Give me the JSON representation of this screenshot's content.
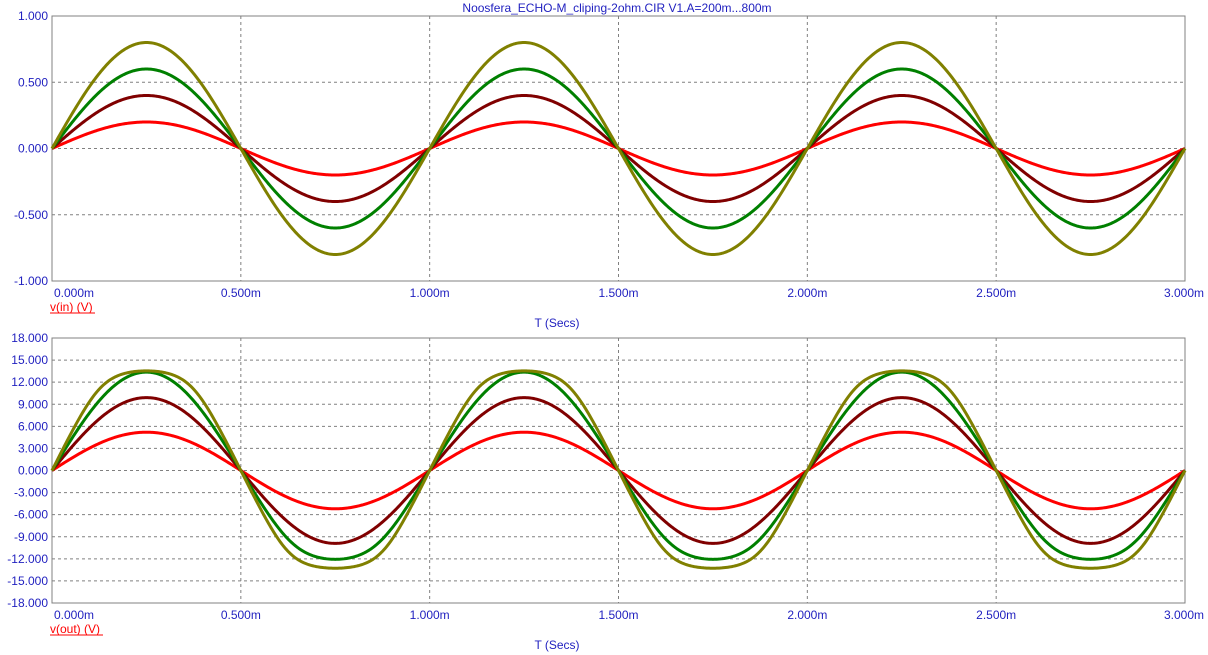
{
  "window": {
    "title": "Noosfera_ECHO-M_cliping-2ohm.CIR V1.A=200m...800m"
  },
  "colors": {
    "background": "#ffffff",
    "grid": "#808080",
    "tick_text": "#1f1fbf",
    "ylabel_text": "#ff0000"
  },
  "chart_data": [
    {
      "type": "line",
      "title": "Noosfera_ECHO-M_cliping-2ohm.CIR V1.A=200m...800m",
      "xlabel": "T (Secs)",
      "ylabel": "v(in) (V)",
      "xlim": [
        0,
        0.003
      ],
      "ylim": [
        -1.0,
        1.0
      ],
      "x_ticks": [
        0,
        0.0005,
        0.001,
        0.0015,
        0.002,
        0.0025,
        0.003
      ],
      "x_tick_labels": [
        "0.000m",
        "0.500m",
        "1.000m",
        "1.500m",
        "2.000m",
        "2.500m",
        "3.000m"
      ],
      "y_ticks": [
        1.0,
        0.5,
        0.0,
        -0.5,
        -1.0
      ],
      "y_tick_labels": [
        "1.000",
        "0.500",
        "0.000",
        "-0.500",
        "-1.000"
      ],
      "grid": true,
      "frequency_hz": 1000,
      "series": [
        {
          "amplitude": 0.2,
          "color": "#ff0000",
          "shape": "sine"
        },
        {
          "amplitude": 0.4,
          "color": "#800000",
          "shape": "sine"
        },
        {
          "amplitude": 0.6,
          "color": "#008000",
          "shape": "sine"
        },
        {
          "amplitude": 0.8,
          "color": "#808000",
          "shape": "sine"
        }
      ]
    },
    {
      "type": "line",
      "title": "",
      "xlabel": "T (Secs)",
      "ylabel": "v(out) (V)",
      "xlim": [
        0,
        0.003
      ],
      "ylim": [
        -18.0,
        18.0
      ],
      "x_ticks": [
        0,
        0.0005,
        0.001,
        0.0015,
        0.002,
        0.0025,
        0.003
      ],
      "x_tick_labels": [
        "0.000m",
        "0.500m",
        "1.000m",
        "1.500m",
        "2.000m",
        "2.500m",
        "3.000m"
      ],
      "y_ticks": [
        18,
        15,
        12,
        9,
        6,
        3,
        0,
        -3,
        -6,
        -9,
        -12,
        -15,
        -18
      ],
      "y_tick_labels": [
        "18.000",
        "15.000",
        "12.000",
        "9.000",
        "6.000",
        "3.000",
        "0.000",
        "-3.000",
        "-6.000",
        "-9.000",
        "-12.000",
        "-15.000",
        "-18.000"
      ],
      "grid": true,
      "frequency_hz": 1000,
      "series": [
        {
          "amplitude": 5.2,
          "color": "#ff0000",
          "shape": "sine"
        },
        {
          "amplitude": 9.9,
          "color": "#800000",
          "shape": "sine"
        },
        {
          "amplitude": 13.4,
          "clip_low": -13.7,
          "color": "#008000",
          "shape": "soft-clipped-sine"
        },
        {
          "amplitude": 16.2,
          "clip_high": 14.5,
          "clip_low": -14.1,
          "color": "#808000",
          "shape": "soft-clipped-sine"
        }
      ]
    }
  ]
}
